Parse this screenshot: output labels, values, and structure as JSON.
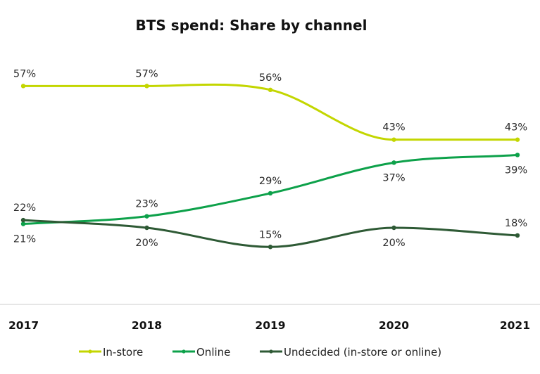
{
  "chart_data": {
    "type": "line",
    "title": "BTS spend: Share by channel",
    "xlabel": "",
    "ylabel": "",
    "x": [
      "2017",
      "2018",
      "2019",
      "2020",
      "2021"
    ],
    "ylim": [
      0,
      60
    ],
    "grid": false,
    "legend_position": "bottom",
    "series": [
      {
        "name": "In-store",
        "color": "#c3d600",
        "values": [
          57,
          57,
          56,
          43,
          43
        ],
        "labels": [
          "57%",
          "57%",
          "56%",
          "43%",
          "43%"
        ],
        "label_positions": [
          "above",
          "above",
          "above",
          "above",
          "above"
        ]
      },
      {
        "name": "Online",
        "color": "#0da14a",
        "values": [
          21,
          23,
          29,
          37,
          39
        ],
        "labels": [
          "21%",
          "23%",
          "29%",
          "37%",
          "39%"
        ],
        "label_positions": [
          "below",
          "above",
          "above",
          "below",
          "below"
        ]
      },
      {
        "name": "Undecided (in-store or online)",
        "color": "#2e5a35",
        "values": [
          22,
          20,
          15,
          20,
          18
        ],
        "labels": [
          "22%",
          "20%",
          "15%",
          "20%",
          "18%"
        ],
        "label_positions": [
          "above",
          "below",
          "above",
          "below",
          "above"
        ]
      }
    ]
  }
}
